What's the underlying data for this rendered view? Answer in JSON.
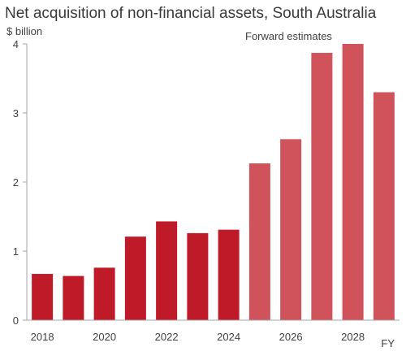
{
  "chart_data": {
    "type": "bar",
    "title": "Net acquisition of non-financial assets, South Australia",
    "ylabel": "$ billion",
    "xlabel": "FY",
    "annotation": "Forward estimates",
    "ylim": [
      0,
      4
    ],
    "yticks": [
      0,
      1,
      2,
      3,
      4
    ],
    "categories": [
      "2018",
      "2019",
      "2020",
      "2021",
      "2022",
      "2023",
      "2024",
      "2025",
      "2026",
      "2027",
      "2028",
      "2029"
    ],
    "xtick_labels": [
      "2018",
      "2020",
      "2022",
      "2024",
      "2026",
      "2028"
    ],
    "values": [
      0.67,
      0.64,
      0.76,
      1.21,
      1.43,
      1.26,
      1.31,
      2.27,
      2.62,
      3.87,
      4.0,
      3.3
    ],
    "forward_estimates_from": "2025",
    "grid": false,
    "colors": {
      "actual": "#be1a28",
      "forward": "#d0525b",
      "axis": "#a6a6a6"
    }
  }
}
